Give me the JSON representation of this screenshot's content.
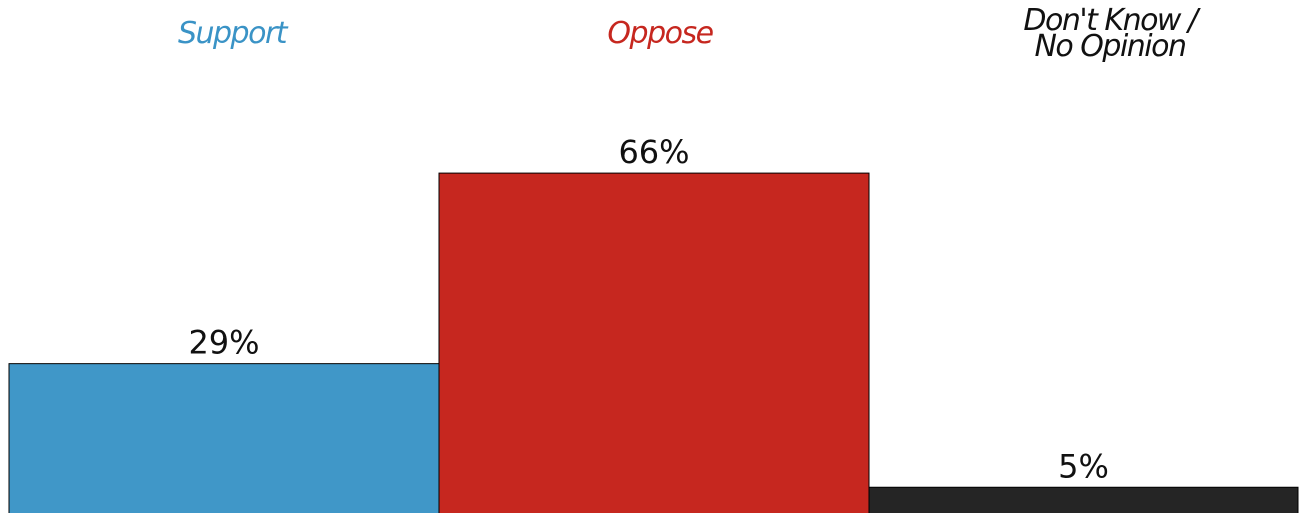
{
  "chart_data": {
    "type": "bar",
    "categories": [
      "Support",
      "Oppose",
      "Don't Know / No Opinion"
    ],
    "category_lines": [
      [
        "Support"
      ],
      [
        "Oppose"
      ],
      [
        "Don't Know /",
        "No Opinion"
      ]
    ],
    "values": [
      29,
      66,
      5
    ],
    "value_labels": [
      "29%",
      "66%",
      "5%"
    ],
    "colors": [
      "#4097c8",
      "#c6271f",
      "#252525"
    ],
    "label_colors": [
      "#3a93c6",
      "#c6271f",
      "#111111"
    ],
    "ylim": [
      0,
      100
    ],
    "grid": false,
    "legend": "none"
  }
}
